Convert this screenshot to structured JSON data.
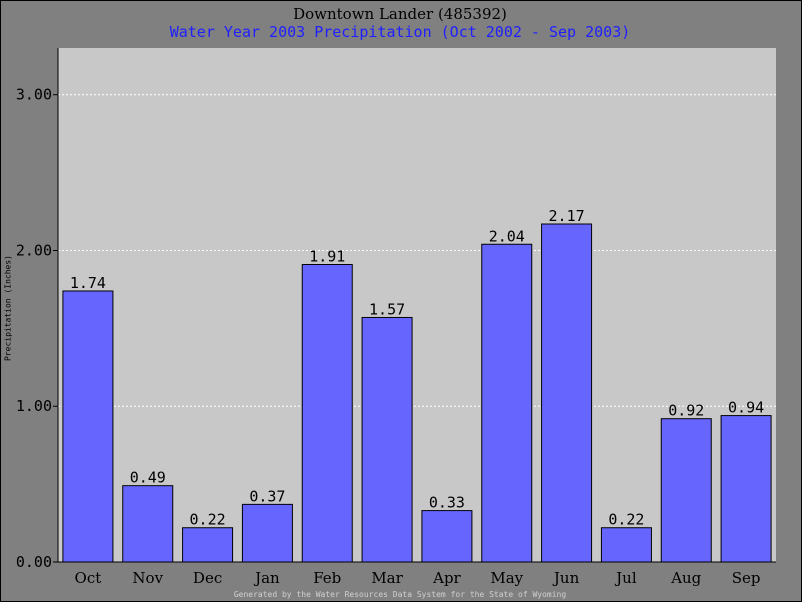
{
  "chart_data": {
    "type": "bar",
    "title": "Downtown Lander (485392)",
    "subtitle": "Water Year 2003 Precipitation (Oct 2002 - Sep 2003)",
    "xlabel": "",
    "ylabel": "Precipitation (Inches)",
    "ylim": [
      0,
      3.3
    ],
    "yticks": [
      "0.00",
      "1.00",
      "2.00",
      "3.00"
    ],
    "categories": [
      "Oct",
      "Nov",
      "Dec",
      "Jan",
      "Feb",
      "Mar",
      "Apr",
      "May",
      "Jun",
      "Jul",
      "Aug",
      "Sep"
    ],
    "values": [
      1.74,
      0.49,
      0.22,
      0.37,
      1.91,
      1.57,
      0.33,
      2.04,
      2.17,
      0.22,
      0.92,
      0.94
    ],
    "value_labels": [
      "1.74",
      "0.49",
      "0.22",
      "0.37",
      "1.91",
      "1.57",
      "0.33",
      "2.04",
      "2.17",
      "0.22",
      "0.92",
      "0.94"
    ],
    "grid": true,
    "bar_color": "#6666ff",
    "plot_background": "#c8c8c8",
    "outer_background": "#808080",
    "subtitle_color": "#2020ff"
  },
  "footer": "Generated by the Water Resources Data System for the State of Wyoming"
}
